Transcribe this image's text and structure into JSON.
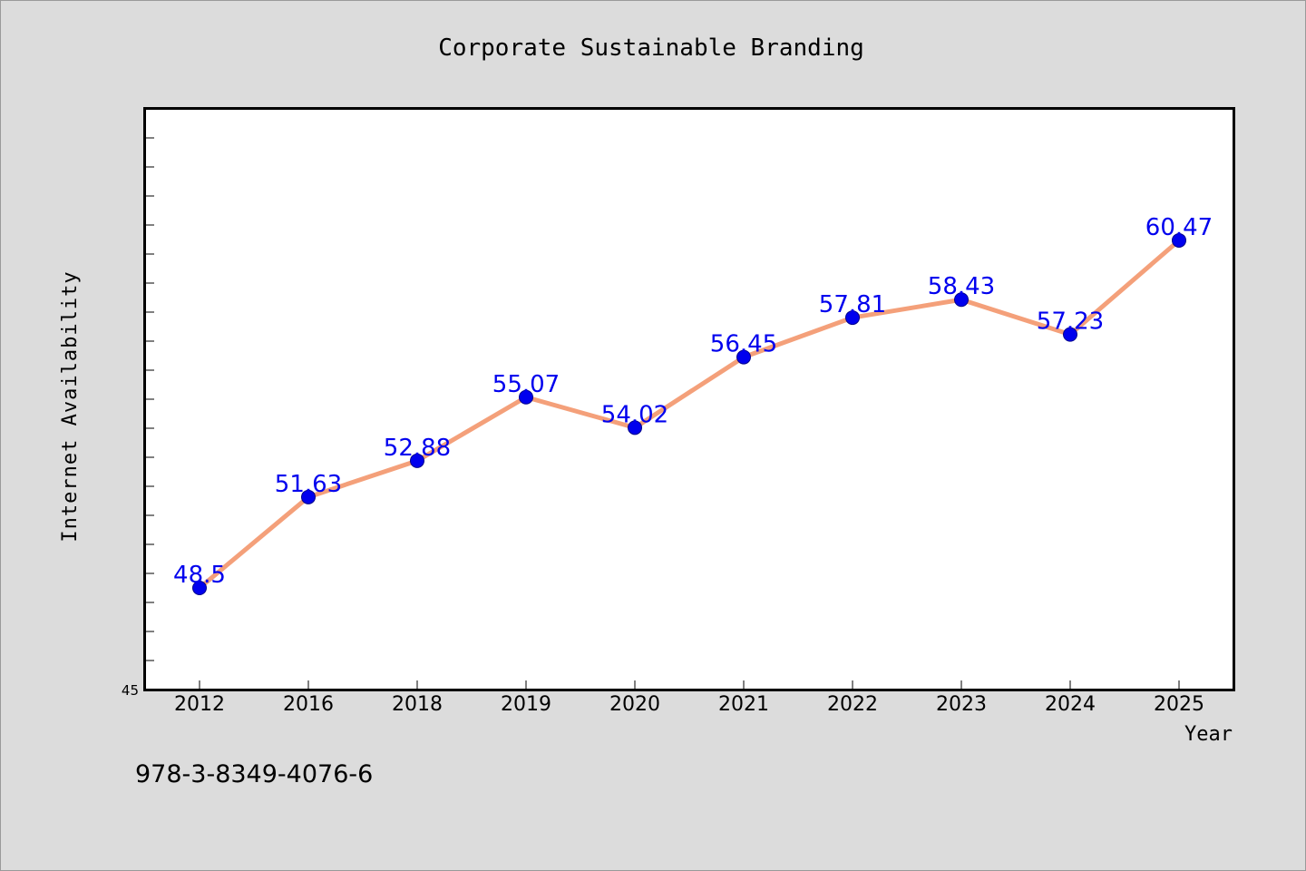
{
  "chart_data": {
    "type": "line",
    "title": "Corporate Sustainable Branding",
    "xlabel": "Year",
    "ylabel": "Internet Availability",
    "categories": [
      "2012",
      "2016",
      "2018",
      "2019",
      "2020",
      "2021",
      "2022",
      "2023",
      "2024",
      "2025"
    ],
    "series": [
      {
        "values": [
          48.5,
          51.63,
          52.88,
          55.07,
          54.02,
          56.45,
          57.81,
          58.43,
          57.23,
          60.47
        ],
        "data_labels": [
          "48.5",
          "51.63",
          "52.88",
          "55.07",
          "54.02",
          "56.45",
          "57.81",
          "58.43",
          "57.23",
          "60.47"
        ]
      }
    ],
    "ylim": [
      45,
      65
    ],
    "y_tick_labels": [
      "45"
    ],
    "grid": false,
    "line_color": "#f4a07a",
    "marker_color": "#0000ee",
    "label_color": "#0000ee",
    "footnote": "978-3-8349-4076-6"
  }
}
